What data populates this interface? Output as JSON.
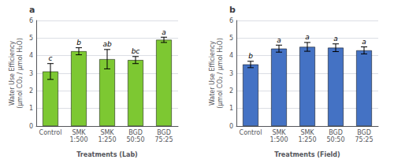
{
  "chart_data": [
    {
      "type": "bar",
      "title": "a",
      "categories": [
        "Control",
        "SMK\n1:500",
        "SMK\n1:250",
        "BGD\n50:50",
        "BGD\n75:25"
      ],
      "values": [
        3.1,
        4.25,
        3.8,
        3.75,
        4.9
      ],
      "errors": [
        0.45,
        0.2,
        0.55,
        0.2,
        0.15
      ],
      "annotations": [
        "c",
        "b",
        "ab",
        "bc",
        "a"
      ],
      "color": "#7DC832",
      "xlabel": "Treatments (Lab)",
      "ylabel": "Water Use Efficiency\n(μmol CO₂ / μmol H₂O)",
      "ylim": [
        0,
        6
      ],
      "yticks": [
        0,
        1,
        2,
        3,
        4,
        5,
        6
      ]
    },
    {
      "type": "bar",
      "title": "b",
      "categories": [
        "Control",
        "SMK\n1:500",
        "SMK\n1:250",
        "BGD\n50:50",
        "BGD\n75:25"
      ],
      "values": [
        3.5,
        4.4,
        4.5,
        4.45,
        4.3
      ],
      "errors": [
        0.18,
        0.2,
        0.25,
        0.22,
        0.2
      ],
      "annotations": [
        "b",
        "a",
        "a",
        "a",
        "a"
      ],
      "color": "#4472C4",
      "xlabel": "Treatments (Field)",
      "ylabel": "Water Use Efficiency\n(μmol CO₂ / μmol H₂O)",
      "ylim": [
        0,
        6
      ],
      "yticks": [
        0,
        1,
        2,
        3,
        4,
        5,
        6
      ]
    }
  ]
}
